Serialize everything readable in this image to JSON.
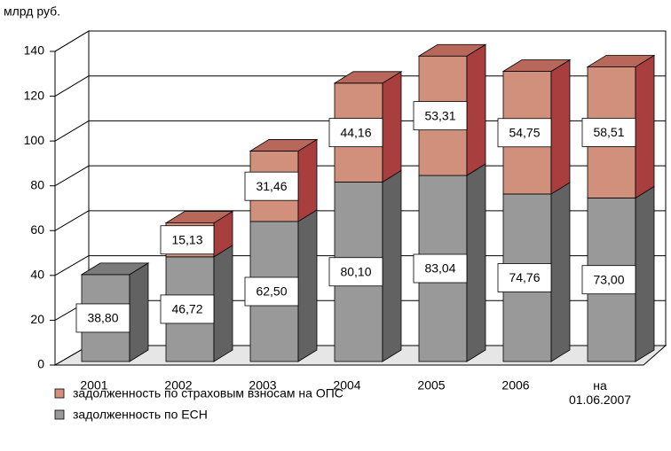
{
  "chart_data": {
    "type": "bar3d_stacked",
    "ylabel": "млрд руб.",
    "categories": [
      "2001",
      "2002",
      "2003",
      "2004",
      "2005",
      "2006",
      "на 01.06.2007"
    ],
    "series": [
      {
        "name": "задолженность по ЕСН",
        "color": "#999999",
        "side_color": "#626262",
        "top_color": "#7a7a7a",
        "values": [
          38.8,
          46.72,
          62.5,
          80.1,
          83.04,
          74.76,
          73.0
        ],
        "value_labels": [
          "38,80",
          "46,72",
          "62,50",
          "80,10",
          "83,04",
          "74,76",
          "73,00"
        ]
      },
      {
        "name": "задолженность по страховым взносам на ОПС",
        "color": "#d0907c",
        "side_color": "#a83e3e",
        "top_color": "#b8685a",
        "values": [
          null,
          15.13,
          31.46,
          44.16,
          53.31,
          54.75,
          58.51
        ],
        "value_labels": [
          null,
          "15,13",
          "31,46",
          "44,16",
          "53,31",
          "54,75",
          "58,51"
        ]
      }
    ],
    "legend_order": [
      1,
      0
    ],
    "ylim": [
      0,
      140
    ],
    "yticks": [
      0,
      20,
      40,
      60,
      80,
      100,
      120,
      140
    ],
    "grid": true
  }
}
